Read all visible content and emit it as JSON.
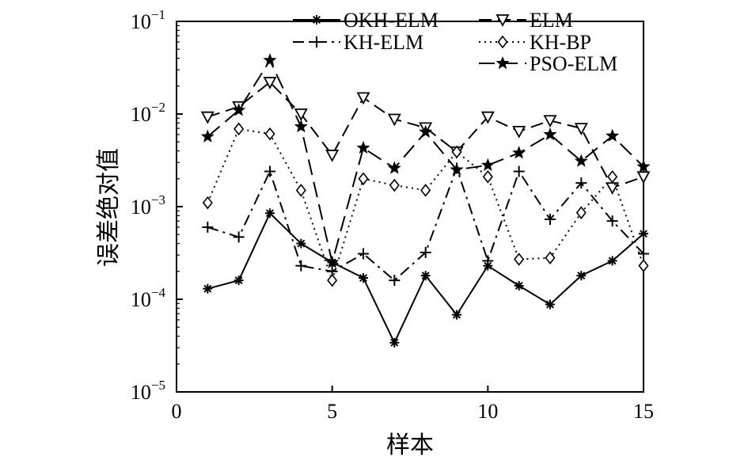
{
  "chart_data": {
    "type": "line",
    "xlabel": "样本",
    "ylabel": "误差绝对值",
    "xlim": [
      0,
      15
    ],
    "ylim": [
      1e-05,
      0.1
    ],
    "yscale": "log",
    "x_ticks": [
      0,
      5,
      10,
      15
    ],
    "y_ticks": [
      {
        "value": 1e-05,
        "base": "10",
        "exp": "−5"
      },
      {
        "value": 0.0001,
        "base": "10",
        "exp": "−4"
      },
      {
        "value": 0.001,
        "base": "10",
        "exp": "−3"
      },
      {
        "value": 0.01,
        "base": "10",
        "exp": "−2"
      },
      {
        "value": 0.1,
        "base": "10",
        "exp": "−1"
      }
    ],
    "grid": false,
    "legend_position": "top-right",
    "x": [
      1,
      2,
      3,
      4,
      5,
      6,
      7,
      8,
      9,
      10,
      11,
      12,
      13,
      14,
      15
    ],
    "series": [
      {
        "name": "OKH-ELM",
        "dash": "solid",
        "marker": "asterisk",
        "values": [
          0.00013,
          0.00016,
          0.00085,
          0.0004,
          0.00025,
          0.00017,
          3.4e-05,
          0.00018,
          6.8e-05,
          0.00023,
          0.00014,
          8.8e-05,
          0.00018,
          0.00026,
          0.00051
        ]
      },
      {
        "name": "KH-ELM",
        "dash": "dashdot",
        "marker": "plus",
        "values": [
          0.0006,
          0.00047,
          0.0024,
          0.00023,
          0.0002,
          0.00031,
          0.00016,
          0.00032,
          0.0026,
          0.00026,
          0.0024,
          0.00073,
          0.0018,
          0.0007,
          0.00031
        ]
      },
      {
        "name": "ELM",
        "dash": "dashed",
        "marker": "triangle-down",
        "values": [
          0.0093,
          0.012,
          0.022,
          0.01,
          0.0036,
          0.015,
          0.0088,
          0.0071,
          0.0039,
          0.0093,
          0.0065,
          0.0085,
          0.007,
          0.0016,
          0.0021
        ]
      },
      {
        "name": "KH-BP",
        "dash": "dotted",
        "marker": "diamond",
        "values": [
          0.0011,
          0.0069,
          0.0061,
          0.0015,
          0.00016,
          0.002,
          0.0017,
          0.0015,
          0.0039,
          0.0021,
          0.00027,
          0.00028,
          0.00086,
          0.0021,
          0.00023
        ]
      },
      {
        "name": "PSO-ELM",
        "dash": "longdash",
        "marker": "star",
        "values": [
          0.0057,
          0.011,
          0.038,
          0.0073,
          0.00025,
          0.0043,
          0.0026,
          0.0064,
          0.0025,
          0.0028,
          0.0038,
          0.006,
          0.0031,
          0.0058,
          0.0027
        ]
      }
    ]
  }
}
